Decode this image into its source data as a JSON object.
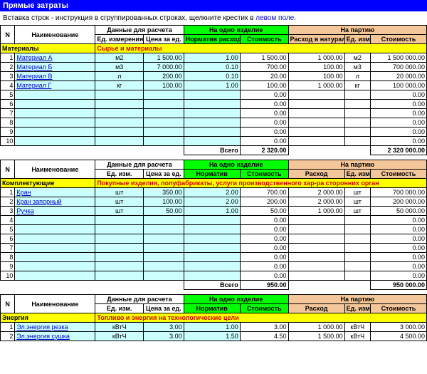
{
  "title": "Прямые затраты",
  "hint_black": "Вставка строк - инструкция в сгруппированных строках, щелкните крестик в",
  "hint_blue": " левом поле.",
  "headers": {
    "n": "N",
    "name": "Наименование",
    "calc_data": "Данные для расчета",
    "per_item": "На одно изделие",
    "per_batch": "На партию",
    "unit_long": "Ед. измерения",
    "unit_short": "Ед. изм.",
    "price": "Цена за ед.",
    "norm_long": "Норматив расхода в натуральном измерении",
    "norm_short": "Норматив",
    "cost": "Стоимость",
    "rash_long": "Расход в натурально м измерении",
    "rash_short": "Расход"
  },
  "total_label": "Всего",
  "sections": [
    {
      "title": "Материалы",
      "subtitle": "Сырье и материалы",
      "unit_header": "long",
      "norm_header": "long",
      "rash_header": "long",
      "rows": [
        {
          "n": "1",
          "name": "Материал А",
          "unit": "м2",
          "price": "1 500.00",
          "norm": "1.00",
          "cost1": "1 500.00",
          "rash": "1 000.00",
          "unit2": "м2",
          "cost2": "1 500 000.00"
        },
        {
          "n": "2",
          "name": "Материал Б",
          "unit": "м3",
          "price": "7 000.00",
          "norm": "0.10",
          "cost1": "700.00",
          "rash": "100.00",
          "unit2": "м3",
          "cost2": "700 000.00"
        },
        {
          "n": "3",
          "name": "Материал В",
          "unit": "л",
          "price": "200.00",
          "norm": "0.10",
          "cost1": "20.00",
          "rash": "100.00",
          "unit2": "л",
          "cost2": "20 000.00"
        },
        {
          "n": "4",
          "name": "Материал Г",
          "unit": "кг",
          "price": "100.00",
          "norm": "1.00",
          "cost1": "100.00",
          "rash": "1 000.00",
          "unit2": "кг",
          "cost2": "100 000.00"
        },
        {
          "n": "5",
          "name": "",
          "unit": "",
          "price": "",
          "norm": "",
          "cost1": "0.00",
          "rash": "",
          "unit2": "",
          "cost2": "0.00"
        },
        {
          "n": "6",
          "name": "",
          "unit": "",
          "price": "",
          "norm": "",
          "cost1": "0.00",
          "rash": "",
          "unit2": "",
          "cost2": "0.00"
        },
        {
          "n": "7",
          "name": "",
          "unit": "",
          "price": "",
          "norm": "",
          "cost1": "0.00",
          "rash": "",
          "unit2": "",
          "cost2": "0.00"
        },
        {
          "n": "8",
          "name": "",
          "unit": "",
          "price": "",
          "norm": "",
          "cost1": "0.00",
          "rash": "",
          "unit2": "",
          "cost2": "0.00"
        },
        {
          "n": "9",
          "name": "",
          "unit": "",
          "price": "",
          "norm": "",
          "cost1": "0.00",
          "rash": "",
          "unit2": "",
          "cost2": "0.00"
        },
        {
          "n": "10",
          "name": "",
          "unit": "",
          "price": "",
          "norm": "",
          "cost1": "0.00",
          "rash": "",
          "unit2": "",
          "cost2": "0.00"
        }
      ],
      "total_cost1": "2 320.00",
      "total_cost2": "2 320 000.00"
    },
    {
      "title": "Комплектующие",
      "subtitle": "Покупные изделия, полуфабрикаты, услуги производственного хар-ра сторонних орган",
      "unit_header": "short",
      "norm_header": "short",
      "rash_header": "short",
      "rows": [
        {
          "n": "1",
          "name": "Кран",
          "unit": "шт",
          "price": "350.00",
          "norm": "2.00",
          "cost1": "700.00",
          "rash": "2 000.00",
          "unit2": "шт",
          "cost2": "700 000.00"
        },
        {
          "n": "2",
          "name": "Кран запорный",
          "unit": "шт",
          "price": "100.00",
          "norm": "2.00",
          "cost1": "200.00",
          "rash": "2 000.00",
          "unit2": "шт",
          "cost2": "200 000.00"
        },
        {
          "n": "3",
          "name": "Ручка",
          "unit": "шт",
          "price": "50.00",
          "norm": "1.00",
          "cost1": "50.00",
          "rash": "1 000.00",
          "unit2": "шт",
          "cost2": "50 000.00"
        },
        {
          "n": "4",
          "name": "",
          "unit": "",
          "price": "",
          "norm": "",
          "cost1": "0.00",
          "rash": "",
          "unit2": "",
          "cost2": "0.00"
        },
        {
          "n": "5",
          "name": "",
          "unit": "",
          "price": "",
          "norm": "",
          "cost1": "0.00",
          "rash": "",
          "unit2": "",
          "cost2": "0.00"
        },
        {
          "n": "6",
          "name": "",
          "unit": "",
          "price": "",
          "norm": "",
          "cost1": "0.00",
          "rash": "",
          "unit2": "",
          "cost2": "0.00"
        },
        {
          "n": "7",
          "name": "",
          "unit": "",
          "price": "",
          "norm": "",
          "cost1": "0.00",
          "rash": "",
          "unit2": "",
          "cost2": "0.00"
        },
        {
          "n": "8",
          "name": "",
          "unit": "",
          "price": "",
          "norm": "",
          "cost1": "0.00",
          "rash": "",
          "unit2": "",
          "cost2": "0.00"
        },
        {
          "n": "9",
          "name": "",
          "unit": "",
          "price": "",
          "norm": "",
          "cost1": "0.00",
          "rash": "",
          "unit2": "",
          "cost2": "0.00"
        },
        {
          "n": "10",
          "name": "",
          "unit": "",
          "price": "",
          "norm": "",
          "cost1": "0.00",
          "rash": "",
          "unit2": "",
          "cost2": "0.00"
        }
      ],
      "total_cost1": "950.00",
      "total_cost2": "950 000.00"
    },
    {
      "title": "Энергия",
      "subtitle": "Топливо и энергия на технологические цели",
      "unit_header": "short",
      "norm_header": "short",
      "rash_header": "short",
      "rows": [
        {
          "n": "1",
          "name": "Эл.энергия резка",
          "unit": "кВтЧ",
          "price": "3.00",
          "norm": "1.00",
          "cost1": "3.00",
          "rash": "1 000.00",
          "unit2": "кВтЧ",
          "cost2": "3 000.00"
        },
        {
          "n": "2",
          "name": "Эл.энергия сушка",
          "unit": "кВтЧ",
          "price": "3.00",
          "norm": "1.50",
          "cost1": "4.50",
          "rash": "1 500.00",
          "unit2": "кВтЧ",
          "cost2": "4 500.00"
        }
      ],
      "total_cost1": "",
      "total_cost2": ""
    }
  ]
}
